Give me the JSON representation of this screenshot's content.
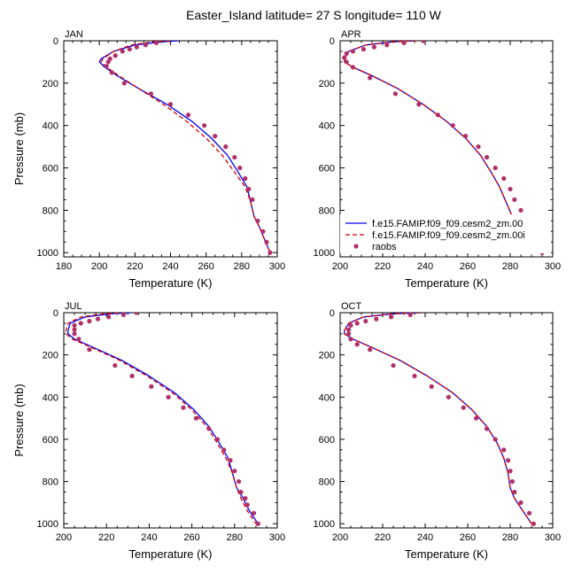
{
  "figure": {
    "title": "Easter_Island  latitude= 27 S longitude= 110 W"
  },
  "colors": {
    "model1": "#0000ee",
    "model2": "#dd0000",
    "raobs": "#b0306a",
    "axis": "#000000"
  },
  "legend": {
    "placement": "bottom-inside APR panel",
    "entries": [
      "f.e15.FAMIP.f09_f09.cesm2_zm.00",
      "f.e15.FAMIP.f09_f09.cesm2_zm.00i",
      "raobs"
    ]
  },
  "chart_data": [
    {
      "type": "line",
      "label": "JAN",
      "xlabel": "Temperature (K)",
      "ylabel": "Pressure (mb)",
      "xlim": [
        180,
        300
      ],
      "ylim": [
        1020,
        0
      ],
      "xticks": [
        180,
        200,
        220,
        240,
        260,
        280,
        300
      ],
      "yticks": [
        0,
        200,
        400,
        600,
        800,
        1000
      ],
      "series": [
        {
          "name": "f.e15.FAMIP.f09_f09.cesm2_zm.00",
          "style": "solid",
          "x": [
            245,
            235,
            220,
            208,
            201,
            200,
            203,
            210,
            222,
            238,
            252,
            263,
            272,
            278,
            283,
            285,
            287,
            290,
            293,
            296
          ],
          "y": [
            0,
            5,
            20,
            50,
            85,
            100,
            125,
            165,
            225,
            300,
            380,
            460,
            540,
            620,
            690,
            760,
            830,
            880,
            940,
            1000
          ]
        },
        {
          "name": "f.e15.FAMIP.f09_f09.cesm2_zm.00i",
          "style": "dashed",
          "x": [
            240,
            230,
            218,
            208,
            202,
            201,
            204,
            211,
            222,
            236,
            249,
            260,
            269,
            276,
            282,
            285,
            287,
            290,
            293,
            296
          ],
          "y": [
            0,
            5,
            20,
            50,
            85,
            100,
            125,
            165,
            225,
            300,
            380,
            460,
            540,
            620,
            690,
            760,
            830,
            880,
            940,
            1000
          ]
        },
        {
          "name": "raobs",
          "style": "markers",
          "x": [
            232,
            226,
            221,
            217,
            213,
            209,
            206,
            205,
            204,
            207,
            214,
            229,
            240,
            250,
            259,
            265,
            271,
            276,
            279,
            282,
            284,
            286,
            289,
            292,
            294,
            296
          ],
          "y": [
            10,
            20,
            30,
            40,
            50,
            70,
            85,
            100,
            120,
            150,
            200,
            250,
            300,
            350,
            400,
            450,
            500,
            550,
            600,
            650,
            700,
            750,
            850,
            900,
            950,
            1000
          ]
        }
      ]
    },
    {
      "type": "line",
      "label": "APR",
      "xlabel": "Temperature (K)",
      "ylabel": "",
      "xlim": [
        200,
        300
      ],
      "ylim": [
        1020,
        0
      ],
      "xticks": [
        200,
        220,
        240,
        260,
        280,
        300
      ],
      "yticks": [
        0,
        200,
        400,
        600,
        800,
        1000
      ],
      "series": [
        {
          "name": "f.e15.FAMIP.f09_f09.cesm2_zm.00",
          "style": "solid",
          "x": [
            236,
            225,
            212,
            204,
            202,
            202,
            206,
            215,
            227,
            239,
            250,
            259,
            266,
            271,
            275,
            278,
            281,
            285,
            290,
            294
          ],
          "y": [
            0,
            5,
            20,
            50,
            85,
            100,
            125,
            165,
            225,
            300,
            380,
            460,
            540,
            620,
            690,
            760,
            830,
            880,
            940,
            1000
          ]
        },
        {
          "name": "f.e15.FAMIP.f09_f09.cesm2_zm.00i",
          "style": "dashed",
          "x": [
            236,
            225,
            212,
            204,
            202,
            202,
            206,
            215,
            227,
            239,
            250,
            259,
            266,
            271,
            275,
            278,
            281,
            285,
            290,
            294
          ],
          "y": [
            0,
            5,
            20,
            50,
            85,
            100,
            125,
            165,
            225,
            300,
            380,
            460,
            540,
            620,
            690,
            760,
            830,
            880,
            940,
            1000
          ]
        },
        {
          "name": "raobs",
          "style": "markers",
          "x": [
            239,
            230,
            222,
            216,
            211,
            206,
            203,
            202,
            203,
            206,
            214,
            226,
            237,
            246,
            253,
            259,
            265,
            269,
            273,
            277,
            280,
            282,
            285,
            286,
            288,
            290,
            292,
            295
          ],
          "y": [
            0,
            10,
            20,
            30,
            40,
            50,
            60,
            80,
            100,
            125,
            175,
            250,
            300,
            350,
            400,
            450,
            500,
            550,
            600,
            650,
            700,
            750,
            800,
            850,
            880,
            910,
            950,
            1000
          ]
        }
      ]
    },
    {
      "type": "line",
      "label": "JUL",
      "xlabel": "Temperature (K)",
      "ylabel": "Pressure (mb)",
      "xlim": [
        200,
        300
      ],
      "ylim": [
        1020,
        0
      ],
      "xticks": [
        200,
        220,
        240,
        260,
        280,
        300
      ],
      "yticks": [
        0,
        200,
        400,
        600,
        800,
        1000
      ],
      "series": [
        {
          "name": "f.e15.FAMIP.f09_f09.cesm2_zm.00",
          "style": "solid",
          "x": [
            232,
            222,
            210,
            203,
            202,
            202,
            205,
            214,
            227,
            240,
            252,
            261,
            268,
            273,
            277,
            279,
            281,
            284,
            287,
            291
          ],
          "y": [
            0,
            5,
            20,
            50,
            85,
            100,
            125,
            165,
            225,
            300,
            380,
            460,
            540,
            620,
            690,
            760,
            830,
            880,
            940,
            1000
          ]
        },
        {
          "name": "f.e15.FAMIP.f09_f09.cesm2_zm.00i",
          "style": "dashed",
          "x": [
            229,
            219,
            208,
            202,
            201,
            201,
            204,
            213,
            226,
            239,
            251,
            260,
            267,
            272,
            276,
            279,
            281,
            283,
            286,
            290
          ],
          "y": [
            0,
            5,
            20,
            50,
            85,
            100,
            125,
            165,
            225,
            300,
            380,
            460,
            540,
            620,
            690,
            760,
            830,
            880,
            940,
            1000
          ]
        },
        {
          "name": "raobs",
          "style": "markers",
          "x": [
            234,
            228,
            221,
            216,
            212,
            208,
            205,
            205,
            205,
            207,
            212,
            224,
            232,
            241,
            249,
            256,
            262,
            268,
            272,
            275,
            278,
            280,
            282,
            283,
            285,
            286,
            289,
            291
          ],
          "y": [
            0,
            10,
            20,
            30,
            40,
            50,
            60,
            80,
            100,
            125,
            175,
            250,
            300,
            350,
            400,
            450,
            500,
            550,
            600,
            650,
            700,
            750,
            800,
            850,
            880,
            910,
            950,
            1000
          ]
        }
      ]
    },
    {
      "type": "line",
      "label": "OCT",
      "xlabel": "Temperature (K)",
      "ylabel": "",
      "xlim": [
        200,
        300
      ],
      "ylim": [
        1020,
        0
      ],
      "xticks": [
        200,
        220,
        240,
        260,
        280,
        300
      ],
      "yticks": [
        0,
        200,
        400,
        600,
        800,
        1000
      ],
      "series": [
        {
          "name": "f.e15.FAMIP.f09_f09.cesm2_zm.00",
          "style": "solid",
          "x": [
            238,
            225,
            211,
            204,
            202,
            202,
            206,
            215,
            228,
            241,
            253,
            262,
            269,
            274,
            277,
            279,
            280,
            282,
            286,
            290
          ],
          "y": [
            0,
            5,
            20,
            50,
            85,
            100,
            125,
            165,
            225,
            300,
            380,
            460,
            540,
            620,
            690,
            760,
            830,
            880,
            940,
            1000
          ]
        },
        {
          "name": "f.e15.FAMIP.f09_f09.cesm2_zm.00i",
          "style": "dashed",
          "x": [
            238,
            225,
            211,
            204,
            202,
            202,
            206,
            215,
            228,
            241,
            253,
            262,
            269,
            274,
            277,
            279,
            280,
            282,
            286,
            290
          ],
          "y": [
            0,
            5,
            20,
            50,
            85,
            100,
            125,
            165,
            225,
            300,
            380,
            460,
            540,
            620,
            690,
            760,
            830,
            880,
            940,
            1000
          ]
        },
        {
          "name": "raobs",
          "style": "markers",
          "x": [
            233,
            224,
            217,
            212,
            208,
            205,
            204,
            204,
            205,
            208,
            214,
            225,
            235,
            243,
            251,
            258,
            264,
            269,
            273,
            277,
            279,
            280,
            281,
            282,
            285,
            289,
            291
          ],
          "y": [
            10,
            20,
            30,
            40,
            50,
            60,
            80,
            100,
            125,
            150,
            175,
            250,
            300,
            350,
            400,
            450,
            500,
            550,
            600,
            650,
            700,
            750,
            800,
            850,
            900,
            950,
            1000
          ]
        }
      ]
    }
  ]
}
